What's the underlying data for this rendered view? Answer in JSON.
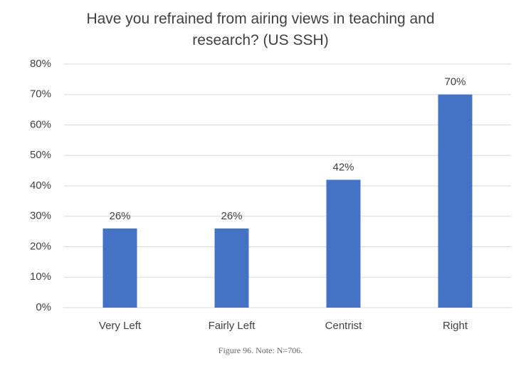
{
  "chart_data": {
    "type": "bar",
    "title": "Have you refrained from airing views in teaching and research? (US SSH)",
    "caption": "Figure 96. Note: N=706.",
    "categories": [
      "Very Left",
      "Fairly Left",
      "Centrist",
      "Right"
    ],
    "values": [
      26,
      26,
      42,
      70
    ],
    "value_labels": [
      "26%",
      "26%",
      "42%",
      "70%"
    ],
    "color": "#4472c4",
    "ylim": [
      0,
      80
    ],
    "yticks": [
      {
        "value": 0,
        "label": "0%"
      },
      {
        "value": 10,
        "label": "10%"
      },
      {
        "value": 20,
        "label": "20%"
      },
      {
        "value": 30,
        "label": "30%"
      },
      {
        "value": 40,
        "label": "40%"
      },
      {
        "value": 50,
        "label": "50%"
      },
      {
        "value": 60,
        "label": "60%"
      },
      {
        "value": 70,
        "label": "70%"
      },
      {
        "value": 80,
        "label": "80%"
      }
    ],
    "grid": true
  }
}
